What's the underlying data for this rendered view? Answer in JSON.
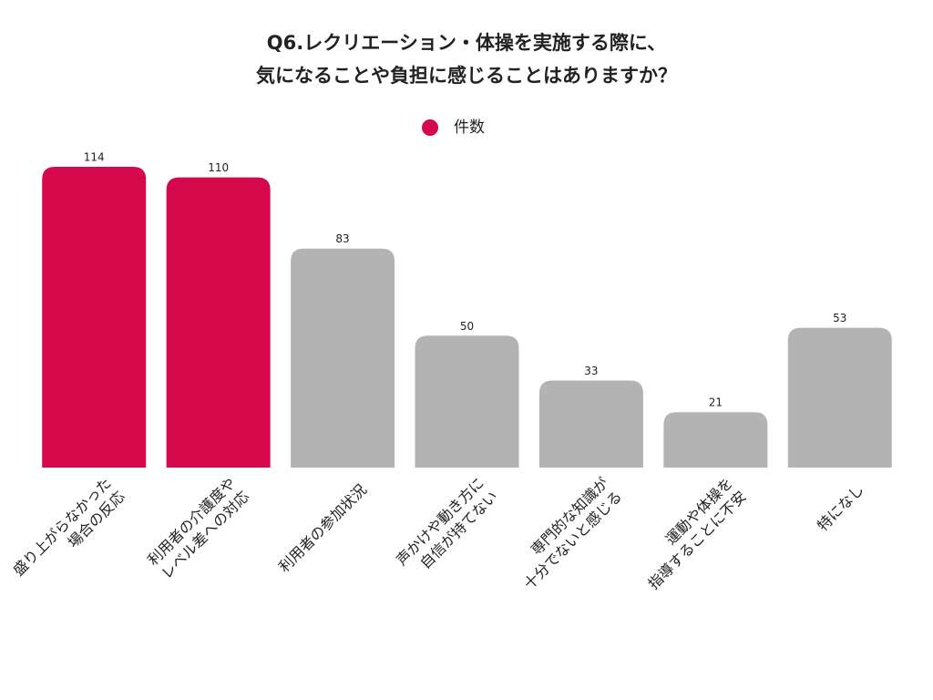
{
  "chart_data": {
    "type": "bar",
    "title": [
      "Q6.レクリエーション・体操を実施する際に、",
      "気になることや負担に感じることはありますか？"
    ],
    "legend": "件数",
    "legend_color": "#d4084a",
    "categories": [
      [
        "盛り上がらなかった",
        "場合の反応"
      ],
      [
        "利用者の介護度や",
        "レベル差への対応"
      ],
      [
        "利用者の参加状況"
      ],
      [
        "声かけや動き方に",
        "自信が持てない"
      ],
      [
        "専門的な知識が",
        "十分でないと感じる"
      ],
      [
        "運動や体操を",
        "指導することに不安"
      ],
      [
        "特になし"
      ]
    ],
    "values": [
      114,
      110,
      83,
      50,
      33,
      21,
      53
    ],
    "colors": [
      "#d4084a",
      "#d4084a",
      "#b3b3b3",
      "#b3b3b3",
      "#b3b3b3",
      "#b3b3b3",
      "#b3b3b3"
    ],
    "ylim": [
      0,
      114
    ]
  }
}
